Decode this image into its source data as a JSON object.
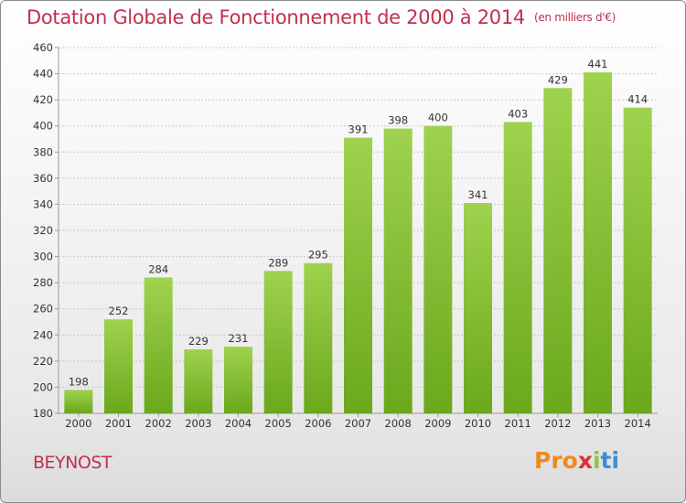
{
  "header": {
    "title": "Dotation Globale de Fonctionnement de 2000 à 2014",
    "unit": "(en milliers d'€)"
  },
  "footer": {
    "commune": "BEYNOST",
    "logo": {
      "part1": "Pro",
      "part2": "x",
      "part3": "i",
      "part4": "ti"
    }
  },
  "chart_data": {
    "type": "bar",
    "title": "Dotation Globale de Fonctionnement de 2000 à 2014",
    "subtitle": "(en milliers d'€)",
    "xlabel": "",
    "ylabel": "",
    "categories": [
      "2000",
      "2001",
      "2002",
      "2003",
      "2004",
      "2005",
      "2006",
      "2007",
      "2008",
      "2009",
      "2010",
      "2011",
      "2012",
      "2013",
      "2014"
    ],
    "values": [
      198,
      252,
      284,
      229,
      231,
      289,
      295,
      391,
      398,
      400,
      341,
      403,
      429,
      441,
      414
    ],
    "ylim": [
      180,
      460
    ],
    "yticks": [
      180,
      200,
      220,
      240,
      260,
      280,
      300,
      320,
      340,
      360,
      380,
      400,
      420,
      440,
      460
    ],
    "grid": true,
    "colors": {
      "bar_top": "#9fd24e",
      "bar_bottom": "#6aa81c",
      "grid": "#c9c9c9"
    }
  }
}
